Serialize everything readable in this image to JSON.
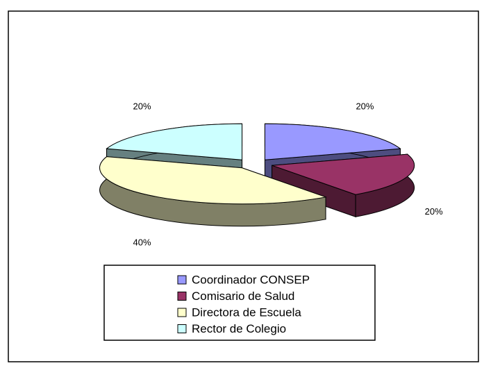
{
  "chart_data": {
    "type": "pie3d",
    "categories": [
      "Coordinador CONSEP",
      "Comisario de Salud",
      "Directora de Escuela",
      "Rector de Colegio"
    ],
    "values": [
      20,
      20,
      40,
      20
    ],
    "value_labels": [
      "20%",
      "20%",
      "40%",
      "20%"
    ],
    "colors": [
      "#9999ff",
      "#993366",
      "#ffffcc",
      "#ccffff"
    ],
    "side_colors": [
      "#4d4d80",
      "#4d1a33",
      "#808066",
      "#668080"
    ],
    "legend": "bottom"
  }
}
